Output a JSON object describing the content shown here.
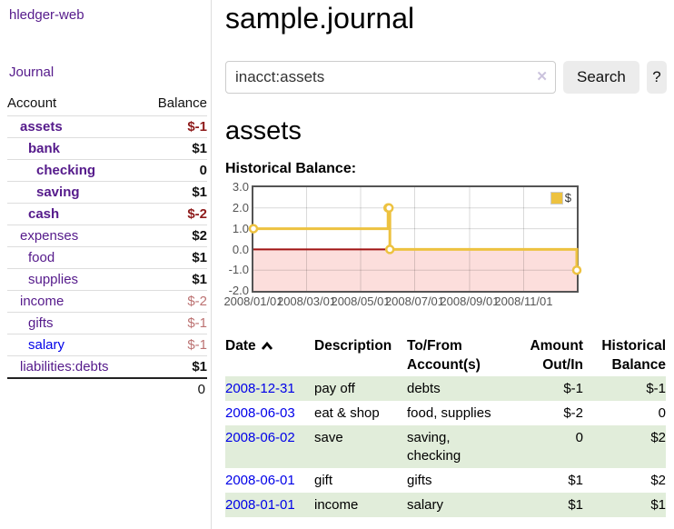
{
  "sidebar": {
    "app_title": "hledger-web",
    "journal_label": "Journal",
    "accounts_table": {
      "account_header": "Account",
      "balance_header": "Balance",
      "rows": [
        {
          "name": "assets",
          "balance": "$-1",
          "depth": 1,
          "bold": true,
          "balance_class": "neg",
          "link_variant": "purple"
        },
        {
          "name": "bank",
          "balance": "$1",
          "depth": 2,
          "bold": true,
          "balance_class": "pos",
          "link_variant": "purple"
        },
        {
          "name": "checking",
          "balance": "0",
          "depth": 3,
          "bold": true,
          "balance_class": "pos",
          "link_variant": "purple"
        },
        {
          "name": "saving",
          "balance": "$1",
          "depth": 3,
          "bold": true,
          "balance_class": "pos",
          "link_variant": "purple"
        },
        {
          "name": "cash",
          "balance": "$-2",
          "depth": 2,
          "bold": true,
          "balance_class": "neg",
          "link_variant": "purple"
        },
        {
          "name": "expenses",
          "balance": "$2",
          "depth": 1,
          "bold": false,
          "balance_class": "pos",
          "link_variant": "purple"
        },
        {
          "name": "food",
          "balance": "$1",
          "depth": 2,
          "bold": false,
          "balance_class": "pos",
          "link_variant": "purple"
        },
        {
          "name": "supplies",
          "balance": "$1",
          "depth": 2,
          "bold": false,
          "balance_class": "pos",
          "link_variant": "purple"
        },
        {
          "name": "income",
          "balance": "$-2",
          "depth": 1,
          "bold": false,
          "balance_class": "neg-light",
          "link_variant": "purple"
        },
        {
          "name": "gifts",
          "balance": "$-1",
          "depth": 2,
          "bold": false,
          "balance_class": "neg-light",
          "link_variant": "purple"
        },
        {
          "name": "salary",
          "balance": "$-1",
          "depth": 2,
          "bold": false,
          "balance_class": "neg-light",
          "link_variant": "blue"
        },
        {
          "name": "liabilities:debts",
          "balance": "$1",
          "depth": 1,
          "bold": false,
          "balance_class": "pos",
          "link_variant": "purple"
        }
      ],
      "total": "0"
    }
  },
  "header": {
    "title": "sample.journal"
  },
  "search": {
    "value": "inacct:assets",
    "clear_icon": "✕",
    "button_label": "Search",
    "help_label": "?"
  },
  "account_page": {
    "title": "assets"
  },
  "chart_data": {
    "type": "line",
    "step": true,
    "title": "Historical Balance:",
    "series": [
      {
        "name": "$",
        "color": "#edc240",
        "points": [
          [
            "2008-01-01",
            1.0
          ],
          [
            "2008-06-01",
            2.0
          ],
          [
            "2008-06-02",
            2.0
          ],
          [
            "2008-06-03",
            0.0
          ],
          [
            "2008-12-31",
            -1.0
          ]
        ]
      }
    ],
    "xlim": [
      "2008-01-01",
      "2008-12-31"
    ],
    "ylim": [
      -2.0,
      3.0
    ],
    "x_tick_labels": [
      "2008/01/01",
      "2008/03/01",
      "2008/05/01",
      "2008/07/01",
      "2008/09/01",
      "2008/11/01"
    ],
    "y_tick_labels": [
      "3.0",
      "2.0",
      "1.0",
      "0.0",
      "-1.0",
      "-2.0"
    ],
    "legend_position": "top-right",
    "grid": true,
    "negative_region": {
      "from": 0,
      "to": -2,
      "color": "#fcdedc"
    },
    "zero_line_color": "#a01313",
    "grid_color": "rgba(0,0,0,0.15)",
    "axis_text_color": "#545454"
  },
  "register": {
    "headers": {
      "date": "Date",
      "description": "Description",
      "accounts": "To/From Account(s)",
      "amount": "Amount Out/In",
      "balance": "Historical Balance"
    },
    "rows": [
      {
        "date": "2008-12-31",
        "description": "pay off",
        "accounts": "debts",
        "amount": "$-1",
        "amount_negative": true,
        "balance": "$-1",
        "balance_negative": true,
        "shaded": true
      },
      {
        "date": "2008-06-03",
        "description": "eat & shop",
        "accounts": "food, supplies",
        "amount": "$-2",
        "amount_negative": true,
        "balance": "0",
        "balance_negative": false,
        "shaded": false
      },
      {
        "date": "2008-06-02",
        "description": "save",
        "accounts": "saving, checking",
        "amount": "0",
        "amount_negative": false,
        "balance": "$2",
        "balance_negative": false,
        "shaded": true
      },
      {
        "date": "2008-06-01",
        "description": "gift",
        "accounts": "gifts",
        "amount": "$1",
        "amount_negative": false,
        "balance": "$2",
        "balance_negative": false,
        "shaded": false
      },
      {
        "date": "2008-01-01",
        "description": "income",
        "accounts": "salary",
        "amount": "$1",
        "amount_negative": false,
        "balance": "$1",
        "balance_negative": false,
        "shaded": true
      }
    ]
  }
}
